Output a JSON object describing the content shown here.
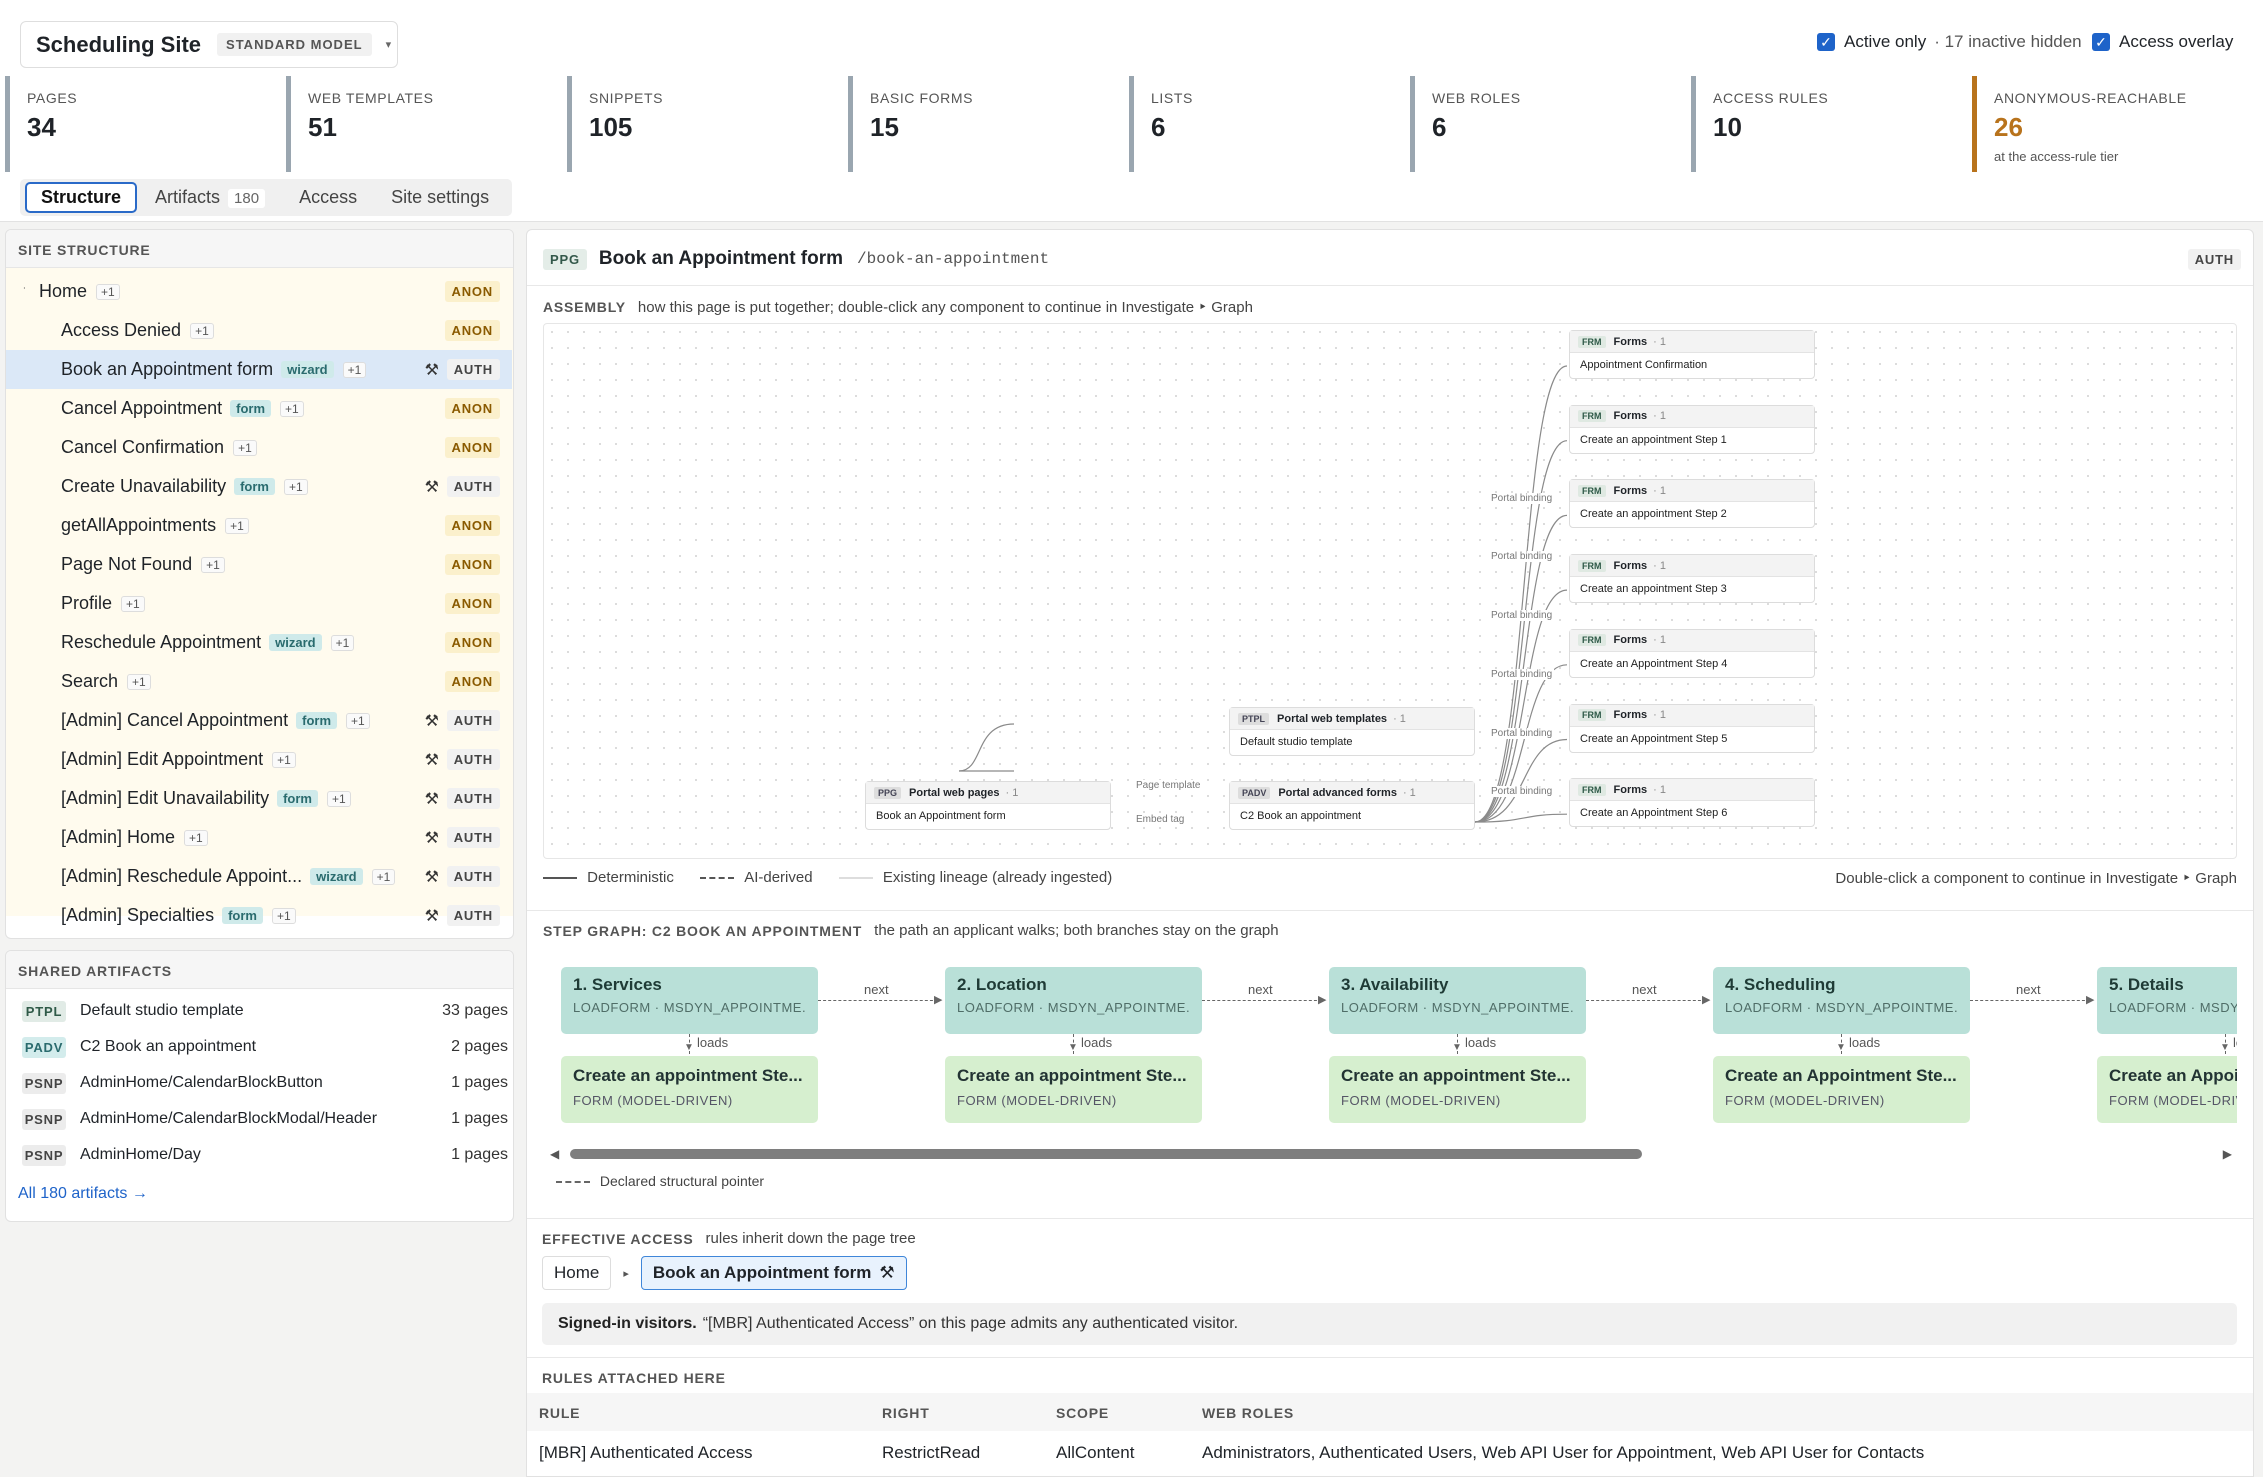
{
  "header": {
    "site_title": "Scheduling Site",
    "model": "STANDARD MODEL",
    "active_only_label": "Active only",
    "inactive_hidden": "· 17 inactive hidden",
    "access_overlay_label": "Access overlay"
  },
  "stats": [
    {
      "label": "PAGES",
      "value": "34"
    },
    {
      "label": "WEB TEMPLATES",
      "value": "51"
    },
    {
      "label": "SNIPPETS",
      "value": "105"
    },
    {
      "label": "BASIC FORMS",
      "value": "15"
    },
    {
      "label": "LISTS",
      "value": "6"
    },
    {
      "label": "WEB ROLES",
      "value": "6"
    },
    {
      "label": "ACCESS RULES",
      "value": "10"
    },
    {
      "label": "ANONYMOUS-REACHABLE",
      "value": "26",
      "sub": "at the access-rule tier"
    }
  ],
  "tabs": {
    "structure": "Structure",
    "artifacts": "Artifacts",
    "artifacts_count": "180",
    "access": "Access",
    "site_settings": "Site settings"
  },
  "site_structure": {
    "title": "SITE STRUCTURE",
    "root": {
      "label": "Home",
      "extra": "+1",
      "access": "ANON"
    },
    "items": [
      {
        "label": "Access Denied",
        "tag": "",
        "extra": "+1",
        "access": "ANON",
        "wrench": false
      },
      {
        "label": "Book an Appointment form",
        "tag": "wizard",
        "extra": "+1",
        "access": "AUTH",
        "wrench": true
      },
      {
        "label": "Cancel Appointment",
        "tag": "form",
        "extra": "+1",
        "access": "ANON",
        "wrench": false
      },
      {
        "label": "Cancel Confirmation",
        "tag": "",
        "extra": "+1",
        "access": "ANON",
        "wrench": false
      },
      {
        "label": "Create Unavailability",
        "tag": "form",
        "extra": "+1",
        "access": "AUTH",
        "wrench": true
      },
      {
        "label": "getAllAppointments",
        "tag": "",
        "extra": "+1",
        "access": "ANON",
        "wrench": false
      },
      {
        "label": "Page Not Found",
        "tag": "",
        "extra": "+1",
        "access": "ANON",
        "wrench": false
      },
      {
        "label": "Profile",
        "tag": "",
        "extra": "+1",
        "access": "ANON",
        "wrench": false
      },
      {
        "label": "Reschedule Appointment",
        "tag": "wizard",
        "extra": "+1",
        "access": "ANON",
        "wrench": false
      },
      {
        "label": "Search",
        "tag": "",
        "extra": "+1",
        "access": "ANON",
        "wrench": false
      },
      {
        "label": "[Admin] Cancel Appointment",
        "tag": "form",
        "extra": "+1",
        "access": "AUTH",
        "wrench": true
      },
      {
        "label": "[Admin] Edit Appointment",
        "tag": "",
        "extra": "+1",
        "access": "AUTH",
        "wrench": true
      },
      {
        "label": "[Admin] Edit Unavailability",
        "tag": "form",
        "extra": "+1",
        "access": "AUTH",
        "wrench": true
      },
      {
        "label": "[Admin] Home",
        "tag": "",
        "extra": "+1",
        "access": "AUTH",
        "wrench": true
      },
      {
        "label": "[Admin] Reschedule Appoint...",
        "tag": "wizard",
        "extra": "+1",
        "access": "AUTH",
        "wrench": true
      },
      {
        "label": "[Admin] Specialties",
        "tag": "form",
        "extra": "+1",
        "access": "AUTH",
        "wrench": true
      }
    ]
  },
  "shared_artifacts": {
    "title": "SHARED ARTIFACTS",
    "items": [
      {
        "type": "PTPL",
        "name": "Default studio template",
        "count": "33 pages"
      },
      {
        "type": "PADV",
        "name": "C2 Book an appointment",
        "count": "2 pages"
      },
      {
        "type": "PSNP",
        "name": "AdminHome/CalendarBlockButton",
        "count": "1 pages"
      },
      {
        "type": "PSNP",
        "name": "AdminHome/CalendarBlockModal/Header",
        "count": "1 pages"
      },
      {
        "type": "PSNP",
        "name": "AdminHome/Day",
        "count": "1 pages"
      }
    ],
    "all_link": "All 180 artifacts →"
  },
  "detail": {
    "type_badge": "PPG",
    "title": "Book an Appointment form",
    "path": "/book-an-appointment",
    "access_badge": "AUTH",
    "assembly_title": "ASSEMBLY",
    "assembly_desc": "how this page is put together; double-click any component to continue in Investigate ‣ Graph",
    "legend_deterministic": "Deterministic",
    "legend_ai": "AI-derived",
    "legend_existing": "Existing lineage (already ingested)",
    "legend_hint": "Double-click a component to continue in Investigate ‣ Graph"
  },
  "graph": {
    "nodes": {
      "page": {
        "badge": "PPG",
        "kind": "Portal web pages",
        "count": "· 1",
        "name": "Book an Appointment form"
      },
      "ptpl": {
        "badge": "PTPL",
        "kind": "Portal web templates",
        "count": "· 1",
        "name": "Default studio template"
      },
      "padv": {
        "badge": "PADV",
        "kind": "Portal advanced forms",
        "count": "· 1",
        "name": "C2 Book an appointment"
      },
      "forms": [
        {
          "badge": "FRM",
          "kind": "Forms",
          "count": "· 1",
          "name": "Appointment Confirmation"
        },
        {
          "badge": "FRM",
          "kind": "Forms",
          "count": "· 1",
          "name": "Create an appointment Step 1"
        },
        {
          "badge": "FRM",
          "kind": "Forms",
          "count": "· 1",
          "name": "Create an appointment Step 2"
        },
        {
          "badge": "FRM",
          "kind": "Forms",
          "count": "· 1",
          "name": "Create an appointment Step 3"
        },
        {
          "badge": "FRM",
          "kind": "Forms",
          "count": "· 1",
          "name": "Create an Appointment Step 4"
        },
        {
          "badge": "FRM",
          "kind": "Forms",
          "count": "· 1",
          "name": "Create an Appointment Step 5"
        },
        {
          "badge": "FRM",
          "kind": "Forms",
          "count": "· 1",
          "name": "Create an Appointment Step 6"
        }
      ]
    },
    "edge_labels": {
      "page_template": "Page template",
      "embed_tag": "Embed tag",
      "portal_binding": "Portal binding"
    }
  },
  "step_graph": {
    "title": "STEP GRAPH: C2 BOOK AN APPOINTMENT",
    "desc": "the path an applicant walks; both branches stay on the graph",
    "next_label": "next",
    "loads_label": "loads",
    "steps": [
      {
        "title": "1. Services",
        "sub": "LOADFORM · MSDYN_APPOINTME..."
      },
      {
        "title": "2. Location",
        "sub": "LOADFORM · MSDYN_APPOINTME..."
      },
      {
        "title": "3. Availability",
        "sub": "LOADFORM · MSDYN_APPOINTME..."
      },
      {
        "title": "4. Scheduling",
        "sub": "LOADFORM · MSDYN_APPOINTME..."
      },
      {
        "title": "5. Details",
        "sub": "LOADFORM · MSDYN_APPOINTME..."
      }
    ],
    "forms": [
      {
        "title": "Create an appointment Ste...",
        "sub": "FORM (MODEL-DRIVEN)"
      },
      {
        "title": "Create an appointment Ste...",
        "sub": "FORM (MODEL-DRIVEN)"
      },
      {
        "title": "Create an appointment Ste...",
        "sub": "FORM (MODEL-DRIVEN)"
      },
      {
        "title": "Create an Appointment Ste...",
        "sub": "FORM (MODEL-DRIVEN)"
      },
      {
        "title": "Create an Appointment Ste...",
        "sub": "FORM (MODEL-DRIVEN)"
      }
    ],
    "legend": "Declared structural pointer"
  },
  "effective_access": {
    "title": "EFFECTIVE ACCESS",
    "desc": "rules inherit down the page tree",
    "crumb_home": "Home",
    "crumb_page": "Book an Appointment form",
    "notice_bold": "Signed-in visitors.",
    "notice_text": "“[MBR] Authenticated Access” on this page admits any authenticated visitor."
  },
  "rules": {
    "title": "RULES ATTACHED HERE",
    "headers": [
      "RULE",
      "RIGHT",
      "SCOPE",
      "WEB ROLES"
    ],
    "rows": [
      [
        "[MBR] Authenticated Access",
        "RestrictRead",
        "AllContent",
        "Administrators, Authenticated Users, Web API User for Appointment, Web API User for Contacts"
      ]
    ]
  },
  "colors": {
    "accent": "#2a6ac8",
    "anon_bg": "#fbf0cc",
    "anon_fg": "#8a5a00",
    "step_bg": "#b9e0d8",
    "form_bg": "#d6efcf",
    "anonymous_reachable": "#b8731c"
  }
}
